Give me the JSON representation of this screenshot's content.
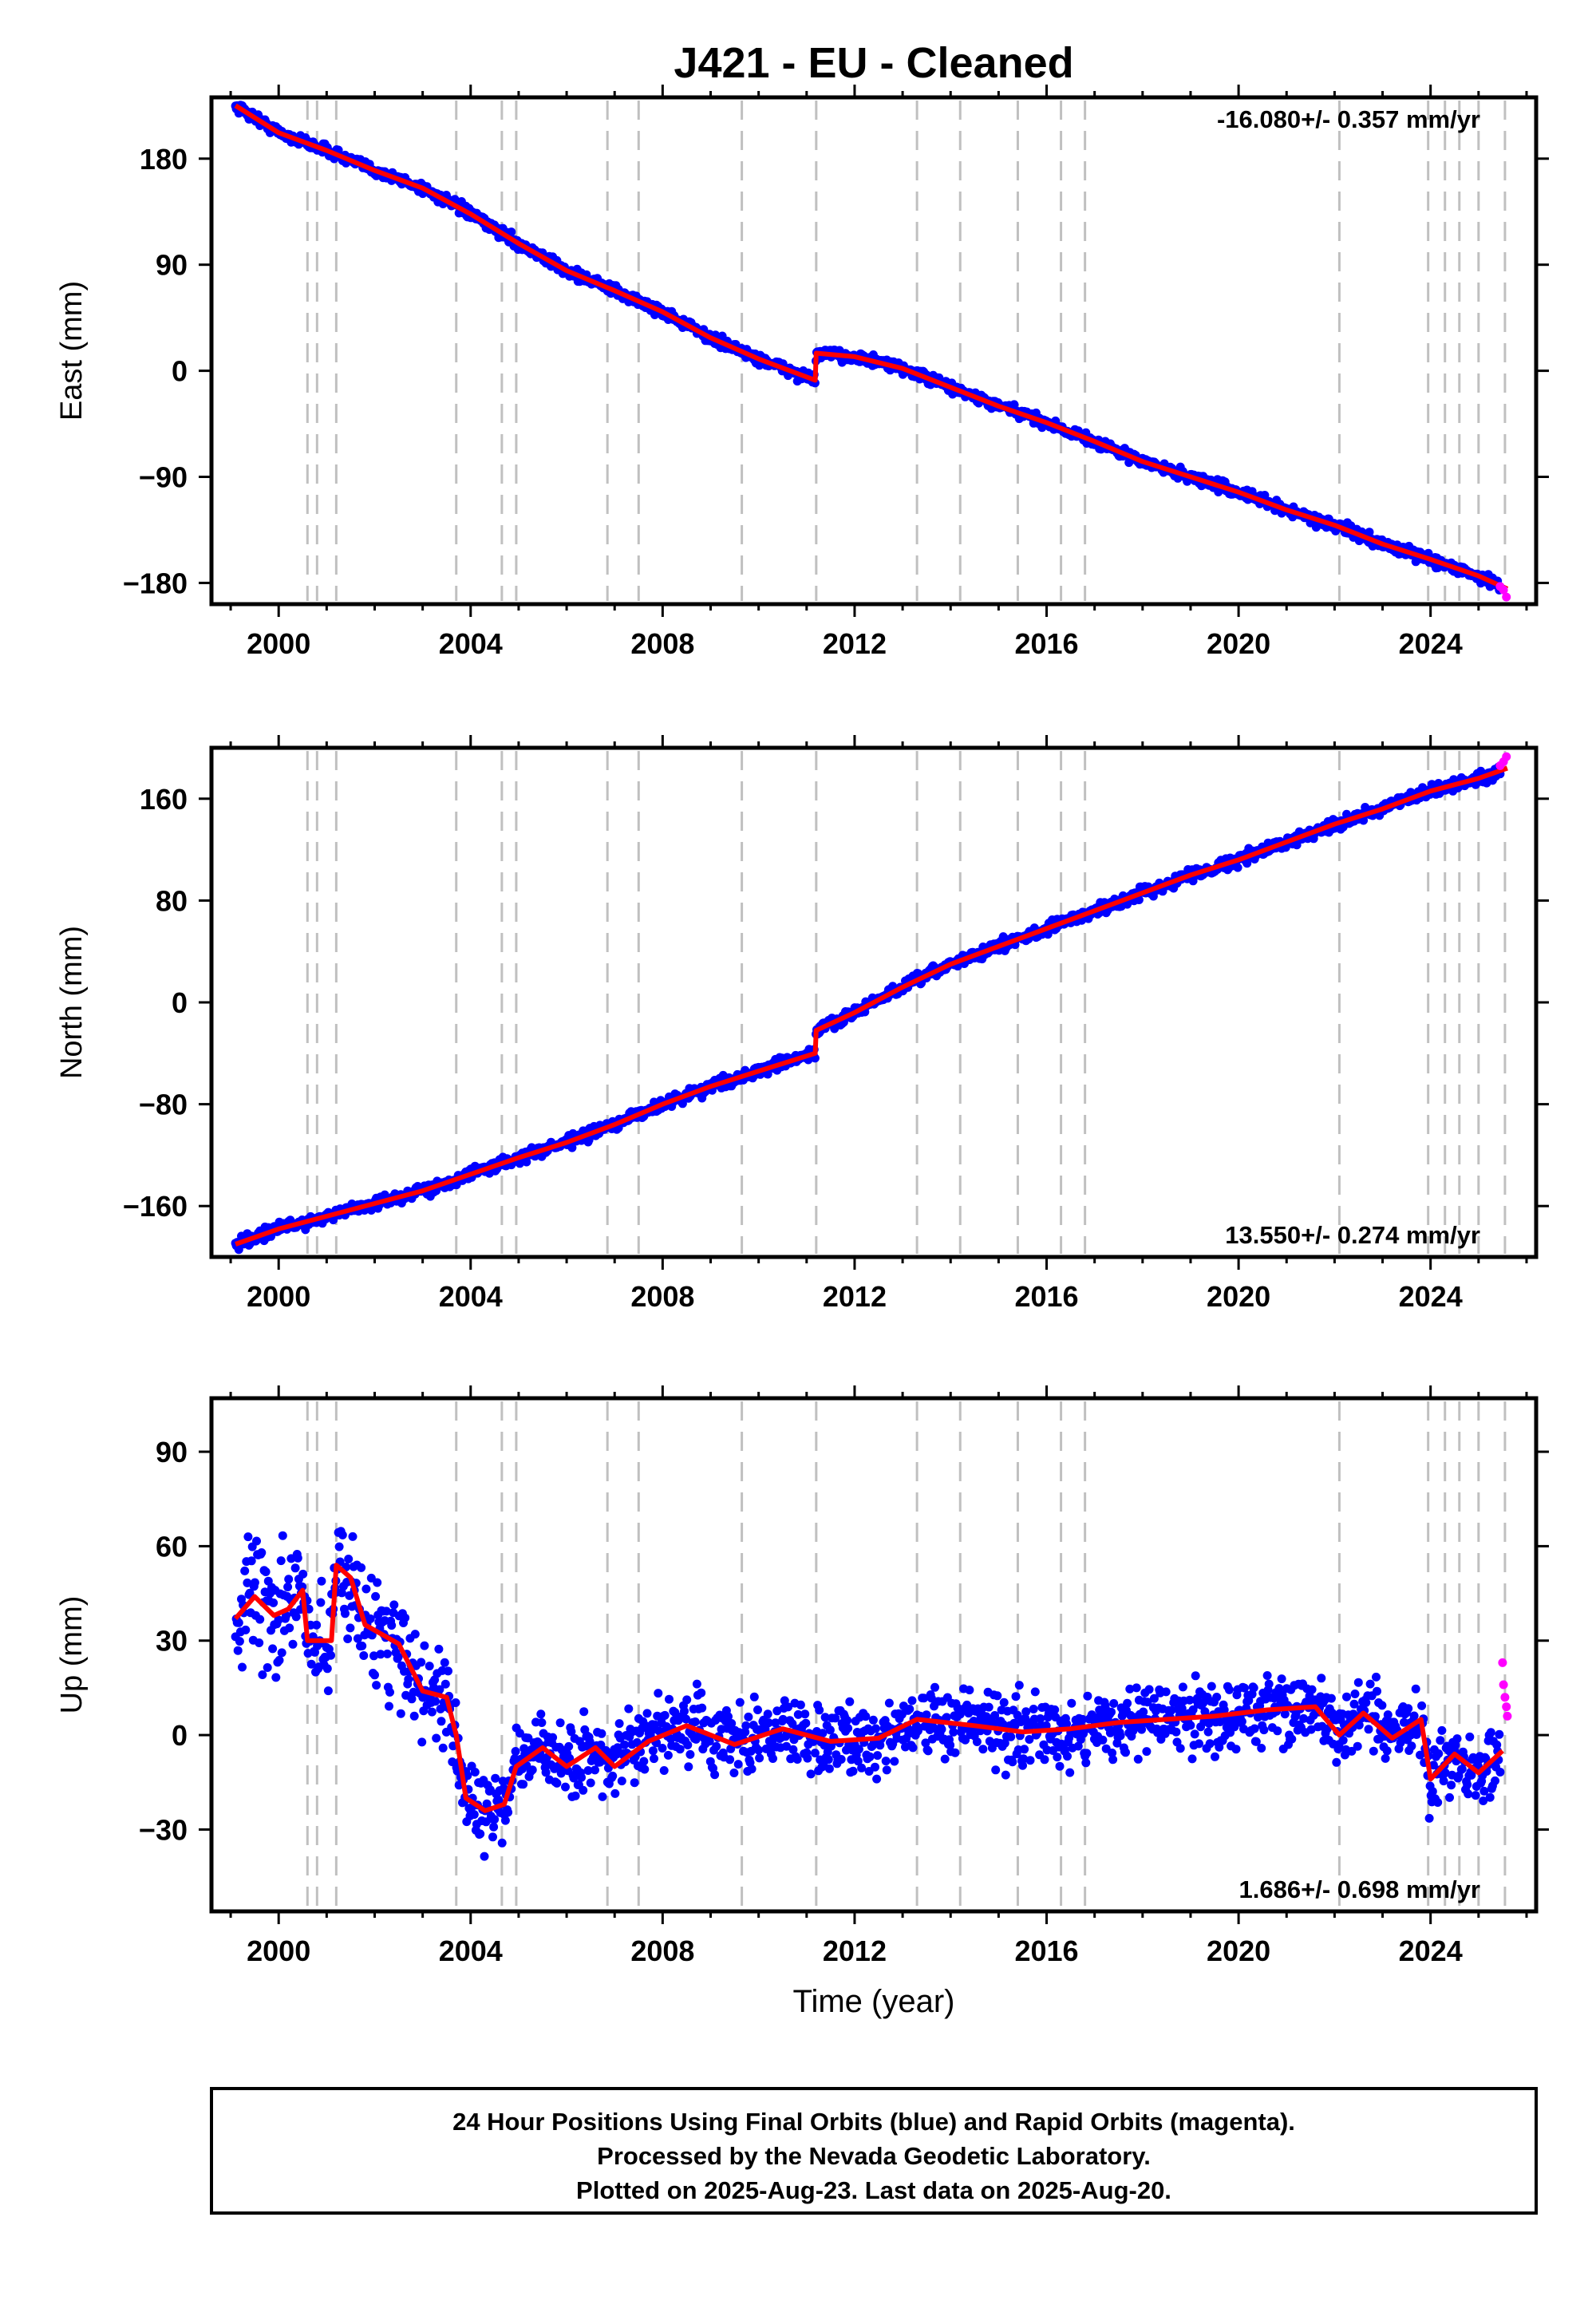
{
  "title": "J421  - EU - Cleaned",
  "x_axis_label": "Time (year)",
  "footer": {
    "line1": "24 Hour Positions Using Final Orbits (blue) and Rapid Orbits (magenta).",
    "line2": "Processed by the Nevada Geodetic Laboratory.",
    "line3": "Plotted on 2025-Aug-23. Last data on 2025-Aug-20."
  },
  "colors": {
    "final_orbits": "#0000ff",
    "rapid_orbits": "#ff00ff",
    "model_fit": "#ff0000",
    "event_lines": "#c0c0c0",
    "axes": "#000000"
  },
  "chart_data": [
    {
      "type": "scatter",
      "name": "east",
      "ylabel": "East (mm)",
      "rate_label": "-16.080+/- 0.357 mm/yr",
      "xlim": [
        1998.6,
        2026.2
      ],
      "ylim": [
        -198,
        232
      ],
      "xticks": [
        2000,
        2004,
        2008,
        2012,
        2016,
        2020,
        2024
      ],
      "yticks": [
        -180,
        -90,
        0,
        90,
        180
      ],
      "ytick_labels": [
        "−180",
        "−90",
        "0",
        "90",
        "180"
      ],
      "event_lines": [
        2000.6,
        2000.8,
        2001.2,
        2003.7,
        2004.65,
        2004.95,
        2006.85,
        2007.5,
        2009.65,
        2011.2,
        2013.3,
        2014.2,
        2015.4,
        2016.3,
        2016.8,
        2022.1,
        2023.95,
        2024.3,
        2024.6,
        2025.0,
        2025.55
      ],
      "fit": [
        [
          1999.1,
          225
        ],
        [
          2000,
          202
        ],
        [
          2001,
          187
        ],
        [
          2002,
          170
        ],
        [
          2003,
          155
        ],
        [
          2004,
          133
        ],
        [
          2005,
          108
        ],
        [
          2006,
          85
        ],
        [
          2007,
          68
        ],
        [
          2008,
          50
        ],
        [
          2009,
          28
        ],
        [
          2010,
          10
        ],
        [
          2011.18,
          -8
        ],
        [
          2011.2,
          15
        ],
        [
          2012,
          12
        ],
        [
          2013,
          2
        ],
        [
          2014,
          -14
        ],
        [
          2015,
          -30
        ],
        [
          2016,
          -44
        ],
        [
          2017,
          -60
        ],
        [
          2018,
          -77
        ],
        [
          2019,
          -90
        ],
        [
          2020,
          -103
        ],
        [
          2021,
          -118
        ],
        [
          2022,
          -131
        ],
        [
          2023,
          -147
        ],
        [
          2024,
          -160
        ],
        [
          2025,
          -174
        ],
        [
          2025.6,
          -185
        ]
      ],
      "rapid": [
        [
          2025.45,
          -183
        ],
        [
          2025.52,
          -186
        ],
        [
          2025.58,
          -192
        ]
      ]
    },
    {
      "type": "scatter",
      "name": "north",
      "ylabel": "North (mm)",
      "rate_label": "13.550+/- 0.274 mm/yr",
      "xlim": [
        1998.6,
        2026.2
      ],
      "ylim": [
        -200,
        200
      ],
      "xticks": [
        2000,
        2004,
        2008,
        2012,
        2016,
        2020,
        2024
      ],
      "yticks": [
        -160,
        -80,
        0,
        80,
        160
      ],
      "ytick_labels": [
        "−160",
        "−80",
        "0",
        "80",
        "160"
      ],
      "event_lines": [
        2000.6,
        2000.8,
        2001.2,
        2003.7,
        2004.65,
        2004.95,
        2006.85,
        2007.5,
        2009.65,
        2011.2,
        2013.3,
        2014.2,
        2015.4,
        2016.3,
        2016.8,
        2022.1,
        2023.95,
        2024.3,
        2024.6,
        2025.0,
        2025.55
      ],
      "fit": [
        [
          1999.1,
          -190
        ],
        [
          2000,
          -178
        ],
        [
          2001,
          -168
        ],
        [
          2002,
          -158
        ],
        [
          2003,
          -148
        ],
        [
          2004,
          -135
        ],
        [
          2005,
          -122
        ],
        [
          2006,
          -110
        ],
        [
          2007,
          -96
        ],
        [
          2008,
          -80
        ],
        [
          2009,
          -66
        ],
        [
          2010,
          -54
        ],
        [
          2011.18,
          -40
        ],
        [
          2011.2,
          -22
        ],
        [
          2012,
          -8
        ],
        [
          2013,
          12
        ],
        [
          2014,
          30
        ],
        [
          2015,
          44
        ],
        [
          2016,
          58
        ],
        [
          2017,
          72
        ],
        [
          2018,
          86
        ],
        [
          2019,
          100
        ],
        [
          2020,
          112
        ],
        [
          2021,
          126
        ],
        [
          2022,
          140
        ],
        [
          2023,
          152
        ],
        [
          2024,
          166
        ],
        [
          2025,
          176
        ],
        [
          2025.6,
          184
        ]
      ],
      "rapid": [
        [
          2025.45,
          186
        ],
        [
          2025.52,
          189
        ],
        [
          2025.58,
          193
        ]
      ]
    },
    {
      "type": "scatter",
      "name": "up",
      "ylabel": "Up (mm)",
      "rate_label": "1.686+/- 0.698 mm/yr",
      "xlim": [
        1998.6,
        2026.2
      ],
      "ylim": [
        -56,
        107
      ],
      "xticks": [
        2000,
        2004,
        2008,
        2012,
        2016,
        2020,
        2024
      ],
      "yticks": [
        -30,
        0,
        30,
        60,
        90
      ],
      "ytick_labels": [
        "−30",
        "0",
        "30",
        "60",
        "90"
      ],
      "event_lines": [
        2000.6,
        2000.8,
        2001.2,
        2003.7,
        2004.65,
        2004.95,
        2006.85,
        2007.5,
        2009.65,
        2011.2,
        2013.3,
        2014.2,
        2015.4,
        2016.3,
        2016.8,
        2022.1,
        2023.95,
        2024.3,
        2024.6,
        2025.0,
        2025.55
      ],
      "fit": [
        [
          1999.1,
          37
        ],
        [
          1999.5,
          44
        ],
        [
          1999.9,
          38
        ],
        [
          2000.2,
          40
        ],
        [
          2000.5,
          46
        ],
        [
          2000.6,
          30
        ],
        [
          2001.1,
          30
        ],
        [
          2001.2,
          54
        ],
        [
          2001.5,
          50
        ],
        [
          2001.8,
          35
        ],
        [
          2002.5,
          29
        ],
        [
          2003.0,
          14
        ],
        [
          2003.5,
          12
        ],
        [
          2003.7,
          0
        ],
        [
          2003.9,
          -20
        ],
        [
          2004.3,
          -24
        ],
        [
          2004.7,
          -22
        ],
        [
          2004.95,
          -10
        ],
        [
          2005.5,
          -4
        ],
        [
          2006.0,
          -10
        ],
        [
          2006.6,
          -4
        ],
        [
          2007.0,
          -10
        ],
        [
          2007.7,
          -2
        ],
        [
          2008.5,
          3
        ],
        [
          2009.5,
          -3
        ],
        [
          2010.5,
          2
        ],
        [
          2011.5,
          -2
        ],
        [
          2012.5,
          -1
        ],
        [
          2013.3,
          5
        ],
        [
          2014.5,
          3
        ],
        [
          2015.5,
          1
        ],
        [
          2016.5,
          2
        ],
        [
          2017.5,
          4
        ],
        [
          2018.5,
          5
        ],
        [
          2019.5,
          6
        ],
        [
          2020.6,
          8
        ],
        [
          2021.6,
          9
        ],
        [
          2022.1,
          0
        ],
        [
          2022.6,
          7
        ],
        [
          2023.2,
          -1
        ],
        [
          2023.8,
          5
        ],
        [
          2024.0,
          -14
        ],
        [
          2024.5,
          -6
        ],
        [
          2025.0,
          -12
        ],
        [
          2025.5,
          -5
        ]
      ],
      "rapid": [
        [
          2025.5,
          23
        ],
        [
          2025.52,
          16
        ],
        [
          2025.55,
          12
        ],
        [
          2025.58,
          9
        ],
        [
          2025.6,
          6
        ]
      ]
    }
  ]
}
